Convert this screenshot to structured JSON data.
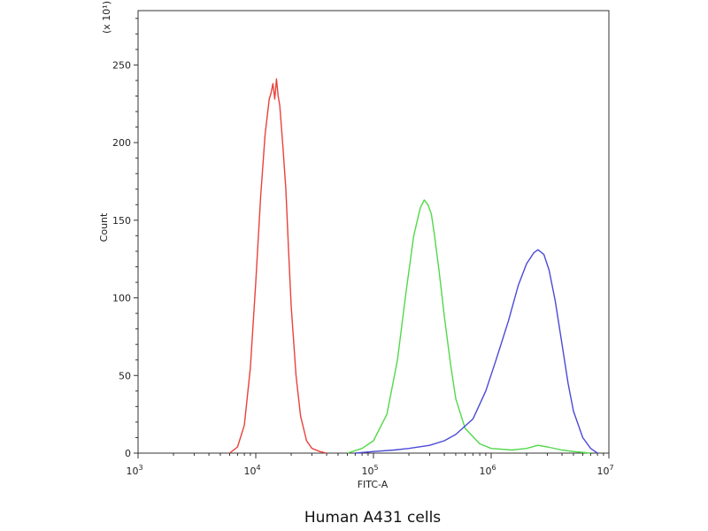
{
  "chart_data": {
    "type": "line",
    "title": "",
    "caption": "Human A431 cells",
    "xlabel": "FITC-A",
    "ylabel": "Count",
    "y_multiplier_label": "(x 10¹)",
    "x_scale": "log",
    "xlim": [
      1000,
      10000000
    ],
    "ylim": [
      0,
      285
    ],
    "x_ticks": [
      {
        "value": 1000,
        "base": "10",
        "exp": "3"
      },
      {
        "value": 10000,
        "base": "10",
        "exp": "4"
      },
      {
        "value": 100000,
        "base": "10",
        "exp": "5"
      },
      {
        "value": 1000000,
        "base": "10",
        "exp": "6"
      },
      {
        "value": 10000000,
        "base": "10",
        "exp": "7"
      }
    ],
    "y_ticks": [
      0,
      50,
      100,
      150,
      200,
      250
    ],
    "y_tick_labels": [
      "0",
      "50",
      "100",
      "150",
      "200",
      "250"
    ],
    "grid": false,
    "legend": "none",
    "series": [
      {
        "color": "#e8423a",
        "x": [
          6000,
          7000,
          8000,
          9000,
          10000,
          11000,
          12000,
          13000,
          13500,
          14000,
          14500,
          15000,
          15500,
          16000,
          17000,
          18000,
          19000,
          20000,
          22000,
          24000,
          27000,
          30000,
          35000,
          40000
        ],
        "y": [
          0,
          4,
          18,
          55,
          110,
          165,
          205,
          228,
          232,
          238,
          228,
          241,
          230,
          224,
          198,
          170,
          130,
          95,
          50,
          24,
          8,
          3,
          1,
          0
        ]
      },
      {
        "color": "#52d94a",
        "x": [
          60000,
          80000,
          100000,
          130000,
          160000,
          190000,
          220000,
          250000,
          270000,
          290000,
          310000,
          330000,
          360000,
          400000,
          450000,
          500000,
          600000,
          800000,
          1000000,
          1500000,
          2000000,
          2500000,
          3000000,
          4000000,
          5000000,
          7000000
        ],
        "y": [
          0,
          3,
          8,
          25,
          60,
          105,
          140,
          158,
          163,
          160,
          154,
          140,
          118,
          88,
          58,
          35,
          16,
          6,
          3,
          2,
          3,
          5,
          4,
          2,
          1,
          0
        ]
      },
      {
        "color": "#4a4ad6",
        "x": [
          70000,
          100000,
          150000,
          200000,
          300000,
          400000,
          500000,
          700000,
          900000,
          1100000,
          1400000,
          1700000,
          2000000,
          2300000,
          2500000,
          2800000,
          3100000,
          3500000,
          4000000,
          4500000,
          5000000,
          6000000,
          7000000,
          8000000
        ],
        "y": [
          0,
          1,
          2,
          3,
          5,
          8,
          12,
          22,
          40,
          60,
          85,
          108,
          122,
          129,
          131,
          128,
          118,
          98,
          70,
          45,
          27,
          10,
          3,
          0
        ]
      }
    ]
  }
}
